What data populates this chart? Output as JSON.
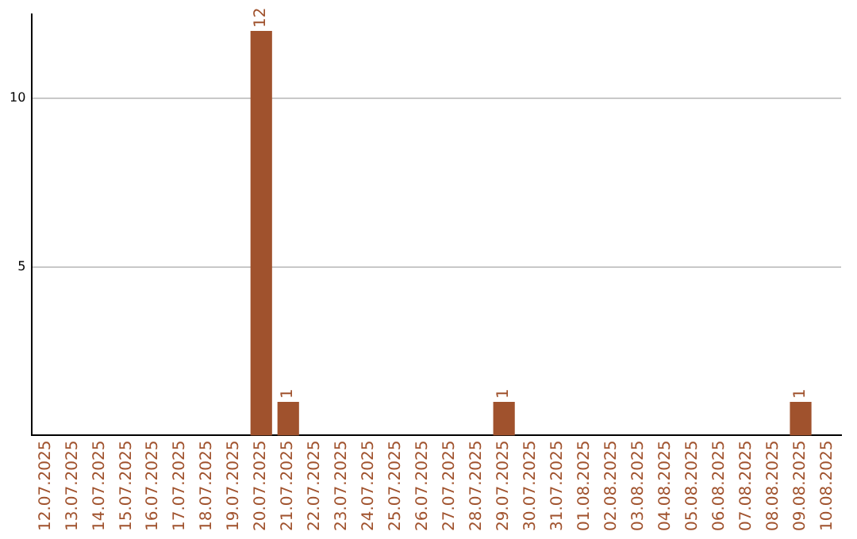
{
  "chart_data": {
    "type": "bar",
    "categories": [
      "12.07.2025",
      "13.07.2025",
      "14.07.2025",
      "15.07.2025",
      "16.07.2025",
      "17.07.2025",
      "18.07.2025",
      "19.07.2025",
      "20.07.2025",
      "21.07.2025",
      "22.07.2025",
      "23.07.2025",
      "24.07.2025",
      "25.07.2025",
      "26.07.2025",
      "27.07.2025",
      "28.07.2025",
      "29.07.2025",
      "30.07.2025",
      "31.07.2025",
      "01.08.2025",
      "02.08.2025",
      "03.08.2025",
      "04.08.2025",
      "05.08.2025",
      "06.08.2025",
      "07.08.2025",
      "08.08.2025",
      "09.08.2025",
      "10.08.2025"
    ],
    "values": [
      0,
      0,
      0,
      0,
      0,
      0,
      0,
      0,
      12,
      1,
      0,
      0,
      0,
      0,
      0,
      0,
      0,
      1,
      0,
      0,
      0,
      0,
      0,
      0,
      0,
      0,
      0,
      0,
      1,
      0
    ],
    "value_labels": [
      null,
      null,
      null,
      null,
      null,
      null,
      null,
      null,
      "12",
      "1",
      null,
      null,
      null,
      null,
      null,
      null,
      null,
      "1",
      null,
      null,
      null,
      null,
      null,
      null,
      null,
      null,
      null,
      null,
      "1",
      null
    ],
    "color": "#a0522d",
    "ylim": [
      0,
      12.5
    ],
    "yticks": [
      5,
      10
    ],
    "grid": "y",
    "legend": false
  }
}
